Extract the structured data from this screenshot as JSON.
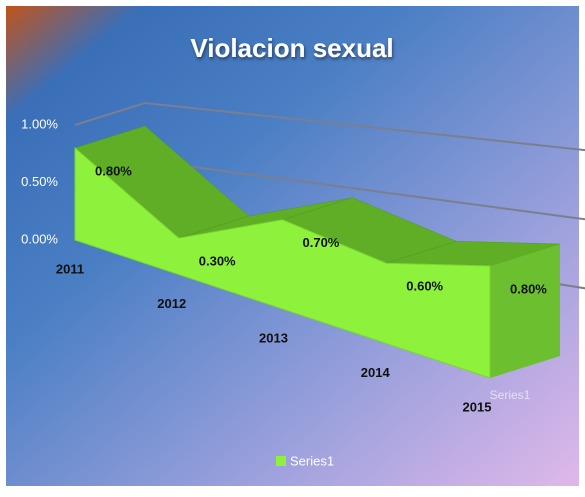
{
  "chart_data": {
    "type": "area3d",
    "title": "Violacion sexual",
    "categories": [
      "2011",
      "2012",
      "2013",
      "2014",
      "2015"
    ],
    "series": [
      {
        "name": "Series1",
        "color": "#8ef23c",
        "values": [
          0.8,
          0.3,
          0.7,
          0.6,
          0.8
        ],
        "value_labels": [
          "0.80%",
          "0.30%",
          "0.70%",
          "0.60%",
          "0.80%"
        ]
      }
    ],
    "ylim": [
      0,
      1
    ],
    "yticks": [
      {
        "value": 0,
        "label": "0.00%"
      },
      {
        "value": 0.5,
        "label": "0.50%"
      },
      {
        "value": 1,
        "label": "1.00%"
      }
    ],
    "grid": true,
    "legend": "bottom"
  }
}
